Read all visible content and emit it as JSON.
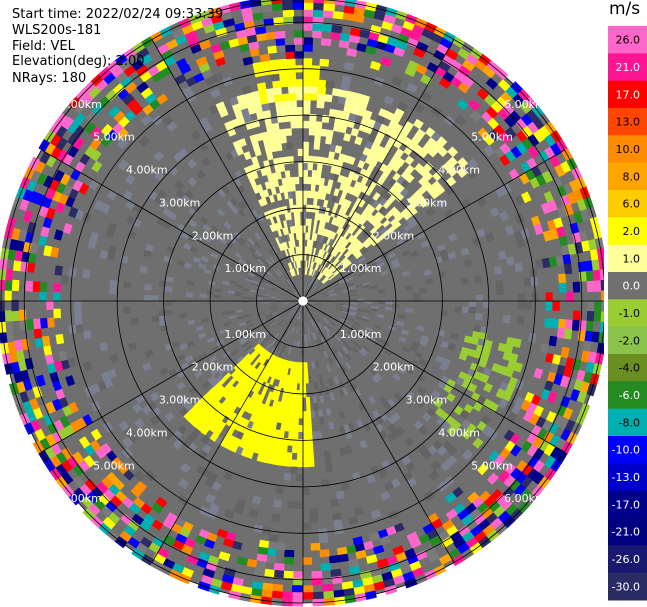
{
  "header": {
    "start_time": "Start time: 2022/02/24 09:33:39",
    "instrument": "WLS200s-181",
    "field": "Field: VEL",
    "elevation": "Elevation(deg): 2.00",
    "nrays": "NRays: 180"
  },
  "colorbar": {
    "unit": "m/s",
    "labels": [
      "26.0",
      "21.0",
      "17.0",
      "13.0",
      "10.0",
      "8.0",
      "6.0",
      "2.0",
      "1.0",
      "0.0",
      "-1.0",
      "-2.0",
      "-4.0",
      "-6.0",
      "-8.0",
      "-10.0",
      "-13.0",
      "-17.0",
      "-21.0",
      "-26.0",
      "-30.0"
    ],
    "colors": [
      "#ff66cc",
      "#ff1493",
      "#ff0000",
      "#ff4500",
      "#ff8c00",
      "#ffa500",
      "#ffcc00",
      "#ffff00",
      "#ffff99",
      "#707070",
      "#9acd32",
      "#8bc34a",
      "#6b8e23",
      "#228b22",
      "#00b0b0",
      "#0000ff",
      "#0000cd",
      "#00008b",
      "#000080",
      "#191970",
      "#2b2b66"
    ]
  },
  "chart_data": {
    "type": "heatmap",
    "field": "VEL",
    "unit": "m/s",
    "n_rays": 180,
    "elevation_deg": 2.0,
    "range_ring_labels": [
      "1.00km",
      "2.00km",
      "3.00km",
      "4.00km",
      "5.00km",
      "6.00km"
    ],
    "range_rings_km": [
      1,
      2,
      3,
      4,
      5,
      6
    ],
    "max_range_km": 6.5,
    "background_velocity": 0.0,
    "regions": [
      {
        "name": "near-field weak positive (N)",
        "value": 1.0,
        "az": [
          -25,
          50
        ],
        "r_km": [
          0.5,
          4.5
        ],
        "density": 0.55
      },
      {
        "name": "north far yellow patch",
        "value": 2.0,
        "az": [
          -12,
          5
        ],
        "r_km": [
          4.2,
          5.5
        ],
        "density": 0.8
      },
      {
        "name": "southwest yellow patch",
        "value": 2.0,
        "az": [
          175,
          225
        ],
        "r_km": [
          1.2,
          3.5
        ],
        "density": 0.9
      },
      {
        "name": "southeast green band",
        "value": -1.0,
        "az": [
          100,
          130
        ],
        "r_km": [
          3.5,
          4.8
        ],
        "density": 0.4
      }
    ],
    "noisy_range_km": 5.2
  }
}
